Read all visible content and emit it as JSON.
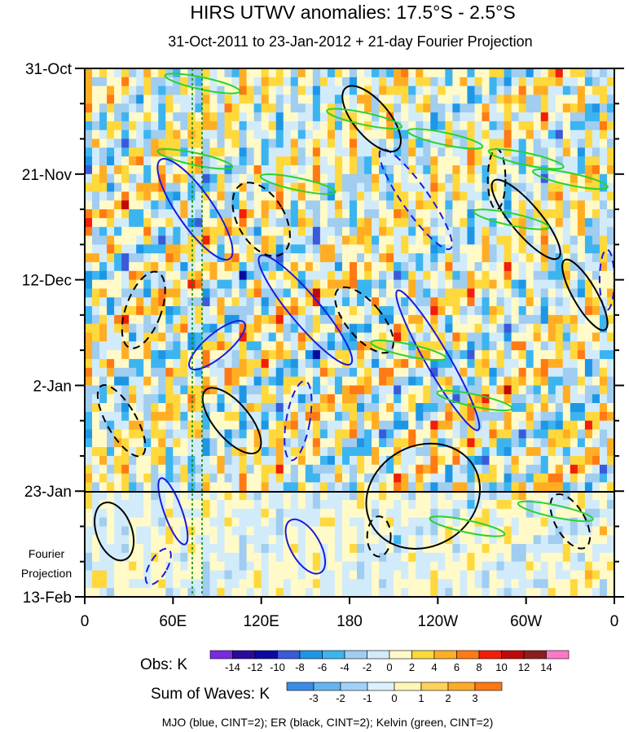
{
  "chart_data": {
    "type": "heatmap",
    "title": "HIRS UTWV anomalies: 17.5°S - 2.5°S",
    "subtitle": "31-Oct-2011 to 23-Jan-2012 + 21-day Fourier Projection",
    "x_ticks": [
      "0",
      "60E",
      "120E",
      "180",
      "120W",
      "60W",
      "0"
    ],
    "x_tick_lon": [
      0,
      60,
      120,
      180,
      240,
      300,
      360
    ],
    "xlim": [
      0,
      360
    ],
    "y_ticks": [
      "31-Oct",
      "21-Nov",
      "12-Dec",
      "2-Jan",
      "23-Jan",
      "13-Feb"
    ],
    "y_tick_day": [
      0,
      21,
      42,
      63,
      84,
      105
    ],
    "ylim": [
      0,
      105
    ],
    "projection_start_day": 84,
    "projection_label_1": "Fourier",
    "projection_label_2": "Projection",
    "obs_colorbar": {
      "label": "Obs: K",
      "ticks": [
        "-14",
        "-12",
        "-10",
        "-8",
        "-6",
        "-4",
        "-2",
        "0",
        "2",
        "4",
        "6",
        "8",
        "10",
        "12",
        "14"
      ],
      "colors": [
        "#7a2be0",
        "#2a0a9c",
        "#0a0aa0",
        "#3a5ad8",
        "#1e96e6",
        "#3cb4f0",
        "#a0cdf0",
        "#d2ebfa",
        "#fffac8",
        "#ffd83c",
        "#ffae24",
        "#ff7a14",
        "#f01e0a",
        "#be0a0a",
        "#8c1e1e",
        "#ff78c8"
      ]
    },
    "waves_colorbar": {
      "label": "Sum of Waves: K",
      "ticks": [
        "-3",
        "-2",
        "-1",
        "0",
        "1",
        "2",
        "3"
      ],
      "colors": [
        "#3c8ce6",
        "#64b4f0",
        "#a0d2f8",
        "#dcf0ff",
        "#fff5b4",
        "#ffd25a",
        "#ffaa28",
        "#ff7814"
      ]
    },
    "caption": "MJO (blue, CINT=2); ER (black, CINT=2); Kelvin (green, CINT=2)",
    "vertical_reference_lon": [
      73,
      80
    ]
  }
}
